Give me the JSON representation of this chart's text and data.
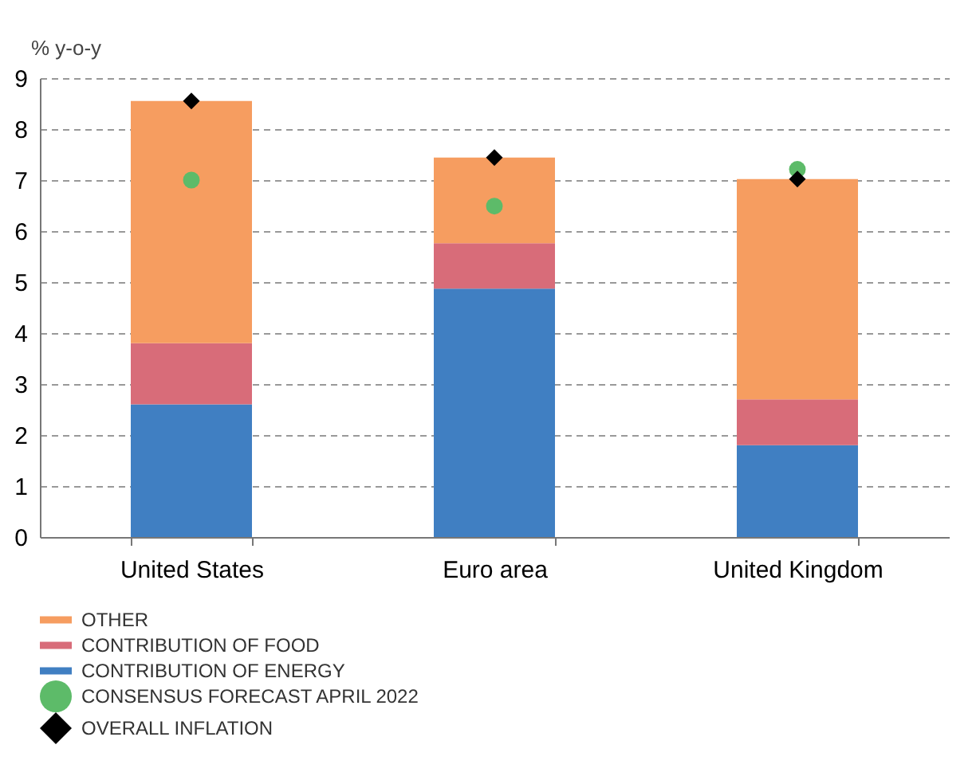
{
  "chart_data": {
    "type": "bar",
    "stacked": true,
    "ylabel": "% y-o-y",
    "categories": [
      "United States",
      "Euro area",
      "United Kingdom"
    ],
    "series": [
      {
        "name": "CONTRIBUTION OF ENERGY",
        "color": "#407fc2",
        "values": [
          2.6,
          4.87,
          1.8
        ]
      },
      {
        "name": "CONTRIBUTION OF FOOD",
        "color": "#d86c79",
        "values": [
          1.2,
          0.89,
          0.9
        ]
      },
      {
        "name": "OTHER",
        "color": "#f69d60",
        "values": [
          4.75,
          1.68,
          4.32
        ]
      },
      {
        "name": "CONSENSUS FORECAST APRIL 2022",
        "type": "scatter",
        "marker": "circle",
        "color": "#5dbb69",
        "x": [
          "United States",
          "Euro area",
          "United Kingdom"
        ],
        "values": [
          7.0,
          6.49,
          7.21
        ]
      },
      {
        "name": "OVERALL INFLATION",
        "type": "scatter",
        "marker": "diamond",
        "color": "#000000",
        "x": [
          "United States",
          "Euro area",
          "United Kingdom"
        ],
        "values": [
          8.55,
          7.44,
          7.02
        ]
      }
    ],
    "ylim": [
      0,
      9
    ],
    "yticks": [
      0,
      1,
      2,
      3,
      4,
      5,
      6,
      7,
      8,
      9
    ],
    "grid": "y",
    "legend": "bottom"
  }
}
